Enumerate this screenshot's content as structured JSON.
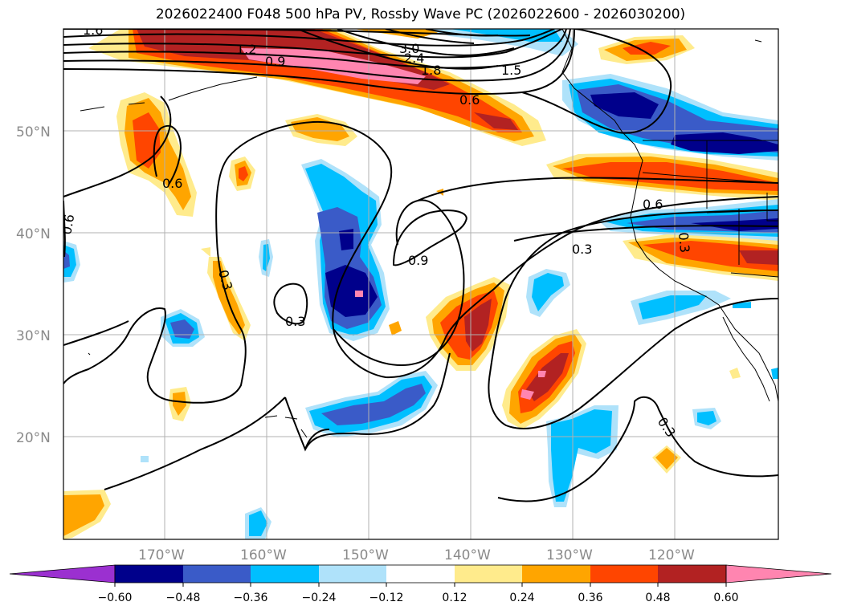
{
  "title": "2026022400 F048 500 hPa PV, Rossby Wave PC (2026022600 - 2026030200)",
  "colors": {
    "neg_extend": "#9b30d0",
    "c1": "#00008b",
    "c2": "#3a5bc8",
    "c3": "#00bfff",
    "c4": "#afe2fa",
    "c5": "#ffffff",
    "c6": "#ffeb8c",
    "c7": "#ffa500",
    "c8": "#ff4500",
    "c9": "#b22222",
    "c10": "#ff85b0"
  },
  "latitude_labels": [
    "50°N",
    "40°N",
    "30°N",
    "20°N"
  ],
  "longitude_labels": [
    "170°W",
    "160°W",
    "150°W",
    "140°W",
    "130°W",
    "120°W"
  ],
  "colorbar": {
    "tick_labels": [
      "−0.60",
      "−0.48",
      "−0.36",
      "−0.24",
      "−0.12",
      "0.12",
      "0.24",
      "0.36",
      "0.48",
      "0.60"
    ]
  },
  "contour_labels": {
    "l_16": "1.6",
    "l_12": "1.2",
    "l_09a": "0.9",
    "l_30": "3.0",
    "l_24": "2.4",
    "l_18": "1.8",
    "l_15": "1.5",
    "l_06a": "0.6",
    "l_06b": "0.6",
    "l_06c": "0.6",
    "l_06d": "0.6",
    "l_09b": "0.9",
    "l_03a": "0.3",
    "l_03b": "0.3",
    "l_03c": "0.3",
    "l_03d": "0.3",
    "l_03e": "0.3"
  }
}
